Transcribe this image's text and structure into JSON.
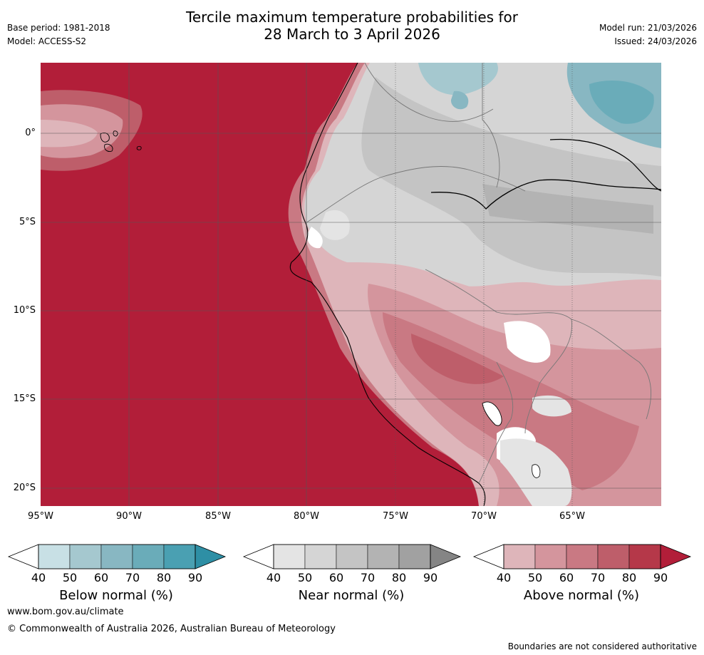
{
  "header": {
    "title_line1": "Tercile maximum temperature probabilities for",
    "title_line2": "28 March to 3 April 2026",
    "base_period": "Base period: 1981-2018",
    "model": "Model: ACCESS-S2",
    "model_run": "Model run: 21/03/2026",
    "issued": "Issued: 24/03/2026"
  },
  "map": {
    "lat_labels": [
      "0°",
      "5°S",
      "10°S",
      "15°S",
      "20°S"
    ],
    "lon_labels": [
      "95°W",
      "90°W",
      "85°W",
      "80°W",
      "75°W",
      "70°W",
      "65°W"
    ]
  },
  "legends": [
    {
      "title": "Below normal (%)",
      "ticks": [
        "40",
        "50",
        "60",
        "70",
        "80",
        "90"
      ],
      "colors": [
        "#ffffff",
        "#c8e0e5",
        "#a5c8cf",
        "#88b7c2",
        "#6aacb9",
        "#4aa0b2",
        "#2e8fa5"
      ]
    },
    {
      "title": "Near normal (%)",
      "ticks": [
        "40",
        "50",
        "60",
        "70",
        "80",
        "90"
      ],
      "colors": [
        "#ffffff",
        "#e4e4e4",
        "#d5d5d5",
        "#c4c4c4",
        "#b3b3b3",
        "#a1a1a1",
        "#858585"
      ]
    },
    {
      "title": "Above normal (%)",
      "ticks": [
        "40",
        "50",
        "60",
        "70",
        "80",
        "90"
      ],
      "colors": [
        "#ffffff",
        "#deb5ba",
        "#d4959d",
        "#c97983",
        "#be5e6a",
        "#b53849",
        "#b21e39"
      ]
    }
  ],
  "footer": {
    "url": "www.bom.gov.au/climate",
    "copyright": "© Commonwealth of Australia 2026, Australian Bureau of Meteorology",
    "disclaimer": "Boundaries are not considered authoritative"
  },
  "colors": {
    "ocean_red": "#b21e39",
    "grid": "#444444"
  }
}
